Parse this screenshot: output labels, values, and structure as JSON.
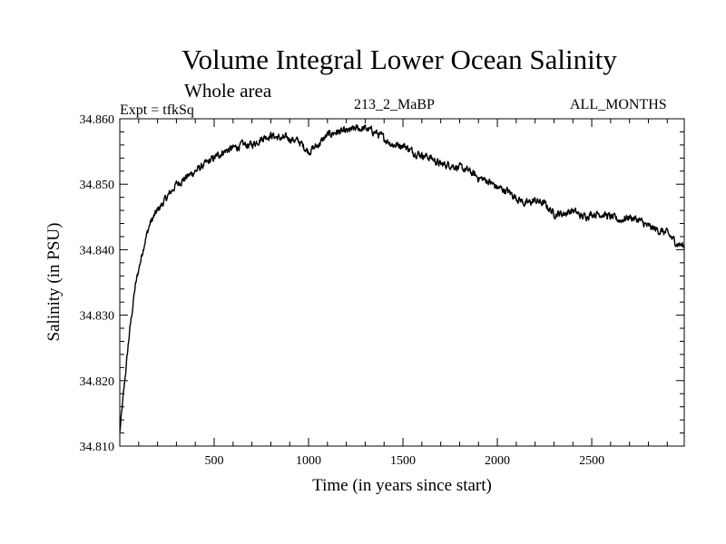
{
  "chart_data": {
    "type": "line",
    "title": "Volume Integral Lower Ocean Salinity",
    "subtitle": "Whole area",
    "annotations": {
      "left": "Expt = tfkSq",
      "center": "213_2_MaBP",
      "right": "ALL_MONTHS"
    },
    "xlabel": "Time (in years since start)",
    "ylabel": "Salinity (in PSU)",
    "xlim": [
      0,
      2990
    ],
    "ylim": [
      34.81,
      34.86
    ],
    "x_ticks": [
      500,
      1000,
      1500,
      2000,
      2500
    ],
    "y_ticks": [
      "34.810",
      "34.820",
      "34.830",
      "34.840",
      "34.850",
      "34.860"
    ],
    "series": [
      {
        "name": "Salinity",
        "x": [
          0,
          20,
          50,
          80,
          100,
          130,
          160,
          200,
          250,
          300,
          350,
          400,
          450,
          500,
          550,
          600,
          650,
          700,
          750,
          800,
          850,
          900,
          950,
          1000,
          1050,
          1100,
          1150,
          1200,
          1250,
          1300,
          1350,
          1400,
          1450,
          1500,
          1550,
          1600,
          1650,
          1700,
          1750,
          1800,
          1850,
          1900,
          1950,
          2000,
          2050,
          2100,
          2150,
          2200,
          2250,
          2300,
          2350,
          2400,
          2450,
          2500,
          2550,
          2600,
          2650,
          2700,
          2750,
          2800,
          2850,
          2900,
          2950,
          2990
        ],
        "values": [
          34.812,
          34.818,
          34.827,
          34.834,
          34.837,
          34.841,
          34.844,
          34.846,
          34.848,
          34.85,
          34.851,
          34.852,
          34.853,
          34.854,
          34.855,
          34.8555,
          34.856,
          34.856,
          34.857,
          34.8575,
          34.857,
          34.857,
          34.8565,
          34.855,
          34.856,
          34.8575,
          34.858,
          34.858,
          34.8585,
          34.8585,
          34.858,
          34.857,
          34.856,
          34.856,
          34.855,
          34.8545,
          34.854,
          34.853,
          34.853,
          34.8525,
          34.852,
          34.851,
          34.8505,
          34.8495,
          34.849,
          34.848,
          34.847,
          34.8475,
          34.847,
          34.8455,
          34.8455,
          34.846,
          34.845,
          34.8455,
          34.8455,
          34.845,
          34.8445,
          34.845,
          34.8445,
          34.8435,
          34.843,
          34.8425,
          34.841,
          34.8405
        ]
      }
    ]
  }
}
